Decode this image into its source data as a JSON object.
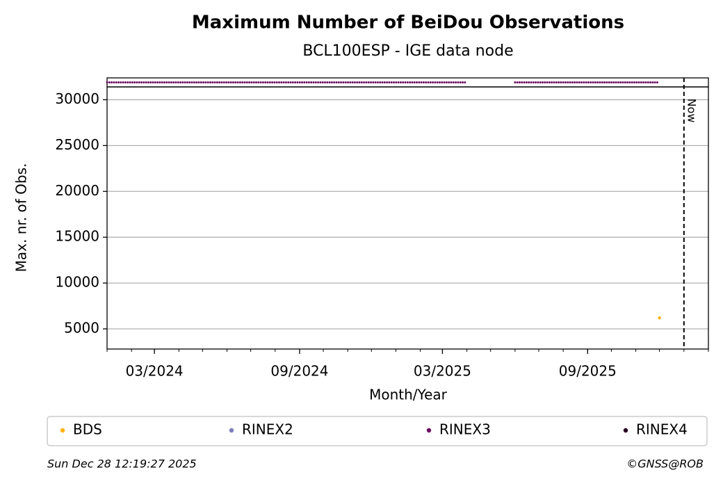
{
  "chart_data": {
    "type": "scatter",
    "title": "Maximum Number of BeiDou Observations",
    "subtitle": "BCL100ESP - IGE data node",
    "x_label": "Month/Year",
    "y_label": "Max. nr. of Obs.",
    "xlim": [
      "2024-01",
      "2026-02"
    ],
    "xticks": [
      {
        "value": "2024-03",
        "label": "03/2024"
      },
      {
        "value": "2024-09",
        "label": "09/2024"
      },
      {
        "value": "2025-03",
        "label": "03/2025"
      },
      {
        "value": "2025-09",
        "label": "09/2025"
      }
    ],
    "ylim": [
      2800,
      31400
    ],
    "yticks": [
      5000,
      10000,
      15000,
      20000,
      25000,
      30000
    ],
    "grid": true,
    "now": {
      "label": "Now",
      "x": "2026-01"
    },
    "series": [
      {
        "name": "BDS",
        "color": "#ffb000",
        "x": [
          "2025-12"
        ],
        "values": [
          6200
        ]
      },
      {
        "name": "RINEX2",
        "color": "#7b7bbb",
        "x": [],
        "values": []
      },
      {
        "name": "RINEX3",
        "color": "#6b0a5f",
        "x": [],
        "values": [],
        "periods": [
          [
            "2024-01",
            "2025-04"
          ],
          [
            "2025-06",
            "2025-12"
          ]
        ]
      },
      {
        "name": "RINEX4",
        "color": "#2a0022",
        "x": [],
        "values": []
      }
    ],
    "legend": "bottom",
    "footer_left": "Sun Dec 28 12:19:27 2025",
    "footer_right": "©GNSS@ROB"
  }
}
